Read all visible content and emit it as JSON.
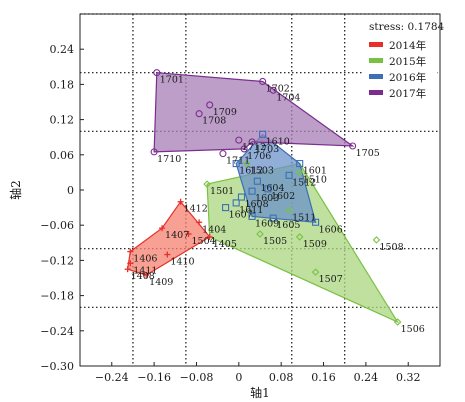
{
  "chart_data": {
    "type": "scatter",
    "title": "",
    "xlabel": "轴1",
    "ylabel": "轴2",
    "xlim": [
      -0.3,
      0.38
    ],
    "ylim": [
      -0.3,
      0.3
    ],
    "x_ticks": [
      {
        "v": -0.24,
        "label": "−0.24"
      },
      {
        "v": -0.16,
        "label": "−0.16"
      },
      {
        "v": -0.08,
        "label": "−0.08"
      },
      {
        "v": 0,
        "label": "0"
      },
      {
        "v": 0.08,
        "label": "0.08"
      },
      {
        "v": 0.16,
        "label": "0.16"
      },
      {
        "v": 0.24,
        "label": "0.24"
      },
      {
        "v": 0.32,
        "label": "0.32"
      }
    ],
    "y_ticks": [
      {
        "v": 0.24,
        "label": "0.24"
      },
      {
        "v": 0.18,
        "label": "0.18"
      },
      {
        "v": 0.12,
        "label": "0.12"
      },
      {
        "v": 0.06,
        "label": "0.06"
      },
      {
        "v": 0,
        "label": "0"
      },
      {
        "v": -0.06,
        "label": "−0.06"
      },
      {
        "v": -0.12,
        "label": "−0.12"
      },
      {
        "v": -0.18,
        "label": "−0.18"
      },
      {
        "v": -0.24,
        "label": "−0.24"
      },
      {
        "v": -0.3,
        "label": "−0.30"
      }
    ],
    "grid_x": [
      -0.2,
      -0.1,
      0.1,
      0.2
    ],
    "grid_y": [
      0.3,
      0.2,
      0.1,
      -0.1,
      -0.2
    ],
    "legend_position": "top-right",
    "stress_text": "stress: 0.1784",
    "series": [
      {
        "name": "2014年",
        "color": "#e8302a",
        "fill": "#f4806f",
        "marker": "plus",
        "hull": [
          "1407",
          "1412",
          "1405",
          "1409",
          "1408",
          "1406"
        ],
        "points": [
          {
            "id": "1407",
            "x": -0.145,
            "y": -0.065
          },
          {
            "id": "1412",
            "x": -0.11,
            "y": -0.02
          },
          {
            "id": "1404",
            "x": -0.075,
            "y": -0.055
          },
          {
            "id": "1504",
            "x": -0.095,
            "y": -0.075
          },
          {
            "id": "1405",
            "x": -0.055,
            "y": -0.08
          },
          {
            "id": "1406",
            "x": -0.205,
            "y": -0.105
          },
          {
            "id": "1410",
            "x": -0.135,
            "y": -0.11
          },
          {
            "id": "1411",
            "x": -0.205,
            "y": -0.125
          },
          {
            "id": "1408",
            "x": -0.21,
            "y": -0.135
          },
          {
            "id": "1409",
            "x": -0.175,
            "y": -0.145
          }
        ]
      },
      {
        "name": "2015年",
        "color": "#7ac143",
        "fill": "#a9d67e",
        "marker": "diamond",
        "hull": [
          "1501",
          "1601",
          "1506",
          "1405"
        ],
        "points": [
          {
            "id": "1501",
            "x": -0.06,
            "y": 0.01
          },
          {
            "id": "1503",
            "x": 0.015,
            "y": 0.045
          },
          {
            "id": "1510",
            "x": 0.115,
            "y": 0.03
          },
          {
            "id": "1505",
            "x": 0.04,
            "y": -0.075
          },
          {
            "id": "1509",
            "x": 0.115,
            "y": -0.08
          },
          {
            "id": "1508",
            "x": 0.26,
            "y": -0.085
          },
          {
            "id": "1507",
            "x": 0.145,
            "y": -0.14
          },
          {
            "id": "1506",
            "x": 0.3,
            "y": -0.225
          },
          {
            "id": "1511",
            "x": 0.095,
            "y": -0.035
          }
        ]
      },
      {
        "name": "2016年",
        "color": "#3b6fb6",
        "fill": "#6b93c9",
        "marker": "square",
        "hull": [
          "1612",
          "1610",
          "1601",
          "1606",
          "1609"
        ],
        "points": [
          {
            "id": "1612",
            "x": -0.005,
            "y": 0.045
          },
          {
            "id": "1610",
            "x": 0.045,
            "y": 0.095
          },
          {
            "id": "1601",
            "x": 0.115,
            "y": 0.045
          },
          {
            "id": "1512",
            "x": 0.095,
            "y": 0.025
          },
          {
            "id": "1604",
            "x": 0.035,
            "y": 0.015
          },
          {
            "id": "1602",
            "x": 0.055,
            "y": 0.002
          },
          {
            "id": "1603",
            "x": 0.025,
            "y": -0.002
          },
          {
            "id": "1608",
            "x": 0.005,
            "y": -0.012
          },
          {
            "id": "1611",
            "x": -0.005,
            "y": -0.022
          },
          {
            "id": "1607",
            "x": -0.025,
            "y": -0.03
          },
          {
            "id": "1609",
            "x": 0.025,
            "y": -0.045
          },
          {
            "id": "1605",
            "x": 0.065,
            "y": -0.048
          },
          {
            "id": "1606",
            "x": 0.145,
            "y": -0.055
          }
        ]
      },
      {
        "name": "2017年",
        "color": "#7b2d8e",
        "fill": "#a57eb5",
        "marker": "circle",
        "hull": [
          "1701",
          "1702",
          "1705",
          "1703",
          "1706",
          "1710"
        ],
        "points": [
          {
            "id": "1701",
            "x": -0.155,
            "y": 0.2
          },
          {
            "id": "1702",
            "x": 0.045,
            "y": 0.185
          },
          {
            "id": "1704",
            "x": 0.065,
            "y": 0.17
          },
          {
            "id": "1709",
            "x": -0.055,
            "y": 0.145
          },
          {
            "id": "1708",
            "x": -0.075,
            "y": 0.13
          },
          {
            "id": "1712",
            "x": 0.0,
            "y": 0.085
          },
          {
            "id": "1703",
            "x": 0.025,
            "y": 0.082
          },
          {
            "id": "1706",
            "x": 0.01,
            "y": 0.07
          },
          {
            "id": "1705",
            "x": 0.215,
            "y": 0.075
          },
          {
            "id": "1710",
            "x": -0.16,
            "y": 0.065
          },
          {
            "id": "1711",
            "x": -0.03,
            "y": 0.062
          }
        ]
      }
    ]
  }
}
